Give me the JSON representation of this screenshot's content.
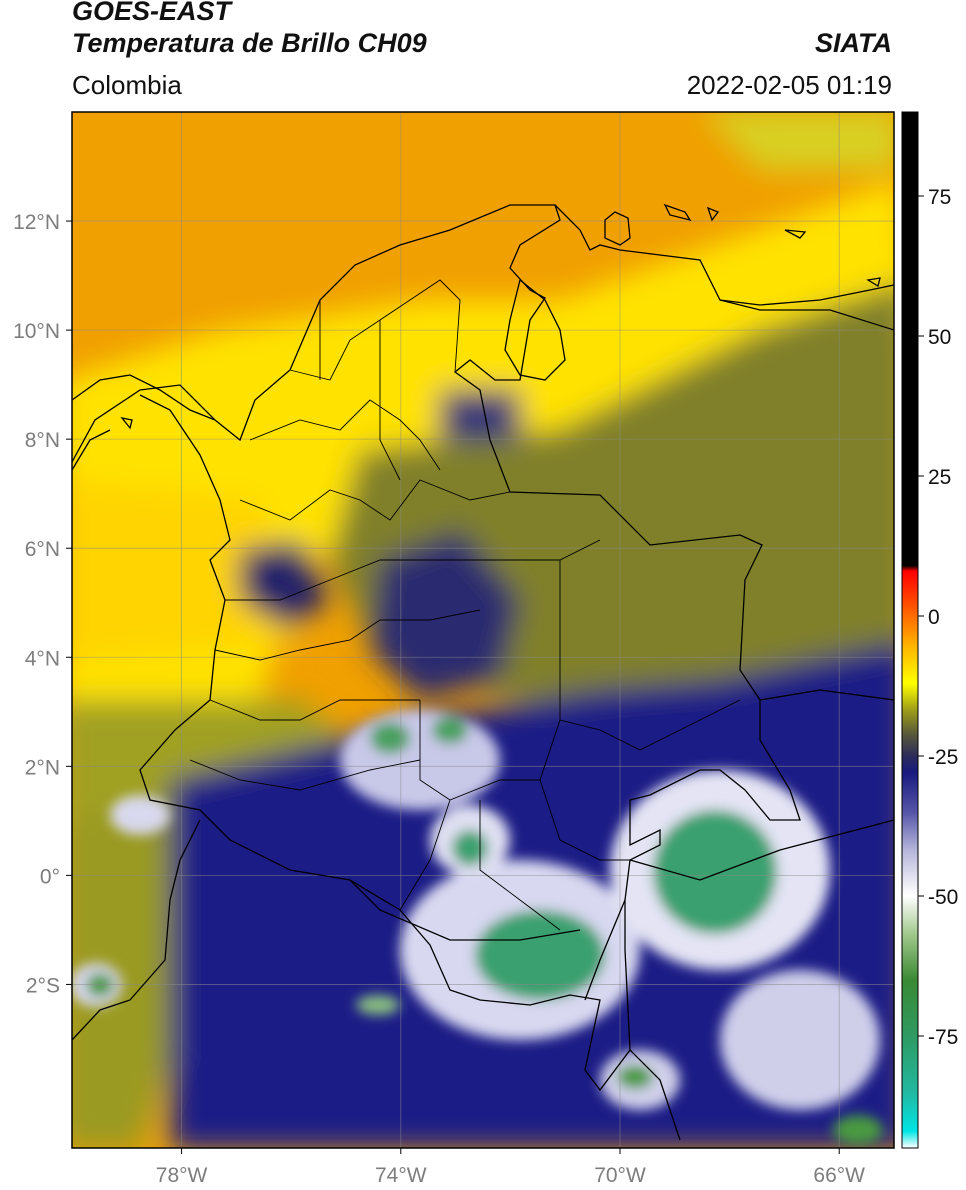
{
  "header": {
    "satellite": "GOES-EAST",
    "product": "Temperatura de Brillo CH09",
    "organization": "SIATA",
    "region": "Colombia",
    "timestamp": "2022-02-05 01:19"
  },
  "map": {
    "lon_range": [
      -80,
      -65
    ],
    "lat_range": [
      -5,
      14
    ],
    "lon_ticks": [
      {
        "value": -78,
        "label": "78°W"
      },
      {
        "value": -74,
        "label": "74°W"
      },
      {
        "value": -70,
        "label": "70°W"
      },
      {
        "value": -66,
        "label": "66°W"
      }
    ],
    "lat_ticks": [
      {
        "value": 12,
        "label": "12°N"
      },
      {
        "value": 10,
        "label": "10°N"
      },
      {
        "value": 8,
        "label": "8°N"
      },
      {
        "value": 6,
        "label": "6°N"
      },
      {
        "value": 4,
        "label": "4°N"
      },
      {
        "value": 2,
        "label": "2°N"
      },
      {
        "value": 0,
        "label": "0°"
      },
      {
        "value": -2,
        "label": "2°S"
      }
    ],
    "gridlines": true
  },
  "colorbar": {
    "range": [
      -95,
      90
    ],
    "ticks": [
      {
        "value": 75,
        "label": "75"
      },
      {
        "value": 50,
        "label": "50"
      },
      {
        "value": 25,
        "label": "25"
      },
      {
        "value": 0,
        "label": "0"
      },
      {
        "value": -25,
        "label": "-25"
      },
      {
        "value": -50,
        "label": "-50"
      },
      {
        "value": -75,
        "label": "-75"
      }
    ],
    "stops": [
      {
        "value": -95,
        "color": "#ffffff"
      },
      {
        "value": -92,
        "color": "#00e5e5"
      },
      {
        "value": -85,
        "color": "#22b8a0"
      },
      {
        "value": -75,
        "color": "#2f9a62"
      },
      {
        "value": -65,
        "color": "#3a8a34"
      },
      {
        "value": -57,
        "color": "#9fc78a"
      },
      {
        "value": -50,
        "color": "#ffffff"
      },
      {
        "value": -42,
        "color": "#b8b8dc"
      },
      {
        "value": -35,
        "color": "#5555a8"
      },
      {
        "value": -28,
        "color": "#1a1a80"
      },
      {
        "value": -25,
        "color": "#2c2c5a"
      },
      {
        "value": -21,
        "color": "#5a5a3a"
      },
      {
        "value": -17,
        "color": "#9a9a1a"
      },
      {
        "value": -12,
        "color": "#ffff00"
      },
      {
        "value": -5,
        "color": "#ffb000"
      },
      {
        "value": 2,
        "color": "#ff5000"
      },
      {
        "value": 8,
        "color": "#ff0000"
      },
      {
        "value": 9,
        "color": "#000000"
      },
      {
        "value": 90,
        "color": "#000000"
      }
    ]
  }
}
